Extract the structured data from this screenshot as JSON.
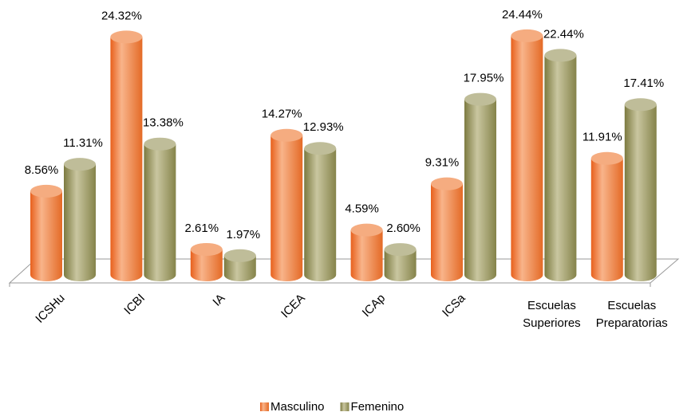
{
  "chart_data": {
    "type": "bar3d",
    "categories": [
      "ICSHu",
      "ICBI",
      "IA",
      "ICEA",
      "ICAp",
      "ICSa",
      "Escuelas Superiores",
      "Escuelas Preparatorias"
    ],
    "series": [
      {
        "name": "Masculino",
        "color": "#f07f3c",
        "values": [
          8.56,
          24.32,
          2.61,
          14.27,
          4.59,
          9.31,
          24.44,
          11.91
        ],
        "value_labels": [
          "8.56%",
          "24.32%",
          "2.61%",
          "14.27%",
          "4.59%",
          "9.31%",
          "24.44%",
          "11.91%"
        ]
      },
      {
        "name": "Femenino",
        "color": "#9c9a62",
        "values": [
          11.31,
          13.38,
          1.97,
          12.93,
          2.6,
          17.95,
          22.44,
          17.41
        ],
        "value_labels": [
          "11.31%",
          "13.38%",
          "1.97%",
          "12.93%",
          "2.60%",
          "17.95%",
          "22.44%",
          "17.41%"
        ]
      }
    ],
    "legend": "bottom"
  }
}
